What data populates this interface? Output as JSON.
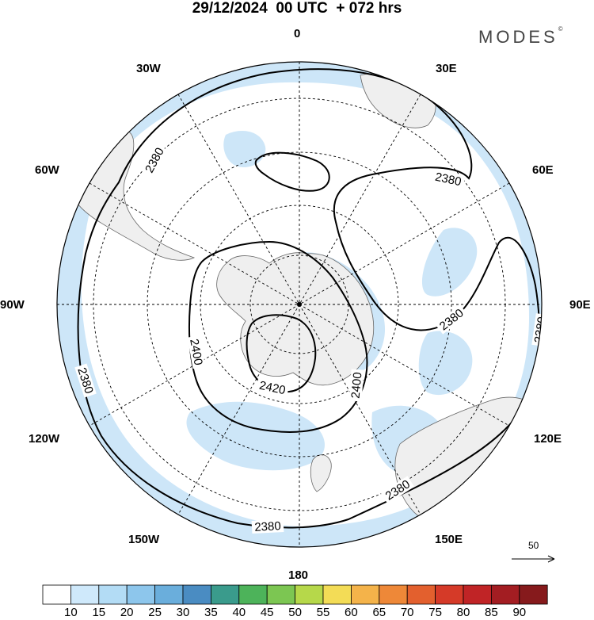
{
  "header": {
    "title": "29/12/2024  00 UTC  + 072 hrs",
    "brand": "MODES",
    "brand_mark": "©"
  },
  "map": {
    "projection": "south-polar-stereographic",
    "longitude_labels": {
      "top": "0",
      "top_right": "30E",
      "right_upper": "60E",
      "right": "90E",
      "right_lower": "120E",
      "bottom_right": "150E",
      "bottom": "180",
      "bottom_left": "150W",
      "left_lower": "120W",
      "left": "90W",
      "left_upper": "60W",
      "top_left": "30W"
    },
    "contour_labels": [
      "2380",
      "2380",
      "2380",
      "2380",
      "2380",
      "2380",
      "2380",
      "2400",
      "2400",
      "2420"
    ],
    "vector_reference": "50",
    "colors": {
      "land": "#efefef",
      "shading_15": "#cde6f8",
      "contour": "#000000",
      "graticule": "#000000"
    }
  },
  "colorbar": {
    "labels": [
      "10",
      "15",
      "20",
      "25",
      "30",
      "35",
      "40",
      "45",
      "50",
      "55",
      "60",
      "65",
      "70",
      "75",
      "80",
      "85",
      "90"
    ],
    "colors": [
      "#ffffff",
      "#cfe9fb",
      "#b3dcf5",
      "#8dc6ec",
      "#6aaedc",
      "#4a8cc2",
      "#3a9b8c",
      "#4db35a",
      "#7cc652",
      "#b6d84a",
      "#f3dc56",
      "#f4b34a",
      "#ee8838",
      "#e3602e",
      "#d53a28",
      "#c02426",
      "#a31d22",
      "#861a1c"
    ]
  }
}
